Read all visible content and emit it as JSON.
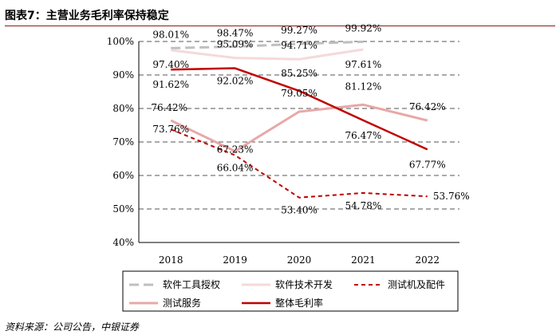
{
  "header": {
    "title": "图表7：主营业务毛利率保持稳定"
  },
  "footer": {
    "source": "资料来源：公司公告，中银证券"
  },
  "chart_data": {
    "type": "line",
    "title": "",
    "xlabel": "",
    "ylabel": "",
    "categories": [
      "2018",
      "2019",
      "2020",
      "2021",
      "2022"
    ],
    "ylim": [
      40,
      100
    ],
    "yticks": [
      "40%",
      "50%",
      "60%",
      "70%",
      "80%",
      "90%",
      "100%"
    ],
    "grid": "horizontal dashed",
    "legend_position": "bottom",
    "series": [
      {
        "name": "软件工具授权",
        "values": [
          98.01,
          98.47,
          99.27,
          99.92,
          null
        ],
        "labels": [
          "98.01%",
          "98.47%",
          "99.27%",
          "99.92%",
          null
        ],
        "color": "#bfbfbf",
        "style": "dashed",
        "width": 3
      },
      {
        "name": "软件技术开发",
        "values": [
          97.4,
          95.09,
          94.71,
          97.61,
          null
        ],
        "labels": [
          "97.40%",
          "95.09%",
          "94.71%",
          "97.61%",
          null
        ],
        "color": "#f6d9d9",
        "style": "solid",
        "width": 3
      },
      {
        "name": "测试机及配件",
        "values": [
          73.76,
          66.04,
          53.4,
          54.78,
          53.76
        ],
        "labels": [
          "73.76%",
          "66.04%",
          "53.40%",
          "54.78%",
          "53.76%"
        ],
        "color": "#c00000",
        "style": "dashed",
        "width": 2
      },
      {
        "name": "测试服务",
        "values": [
          76.42,
          67.23,
          79.05,
          81.12,
          76.42
        ],
        "labels": [
          "76.42%",
          "67.23%",
          "79.05%",
          "81.12%",
          "76.42%"
        ],
        "color": "#e8a8a8",
        "style": "solid",
        "width": 3
      },
      {
        "name": "整体毛利率",
        "values": [
          91.62,
          92.02,
          85.25,
          76.47,
          67.77
        ],
        "labels": [
          "91.62%",
          "92.02%",
          "85.25%",
          "76.47%",
          "67.77%"
        ],
        "color": "#c00000",
        "style": "solid",
        "width": 2.5
      }
    ]
  }
}
